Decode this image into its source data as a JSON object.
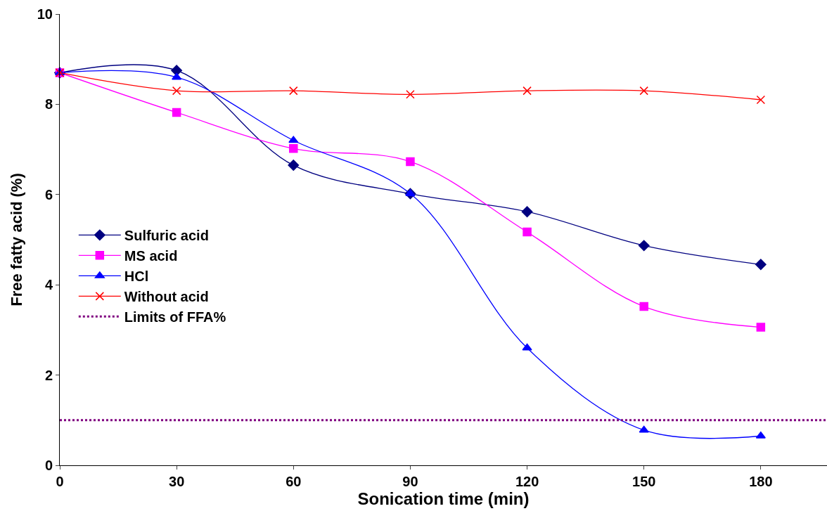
{
  "chart_data": {
    "type": "line",
    "xlabel": "Sonication time (min)",
    "ylabel": "Free fatty acid (%)",
    "x": [
      0,
      30,
      60,
      90,
      120,
      150,
      180
    ],
    "series": [
      {
        "name": "Sulfuric acid",
        "color": "#000080",
        "marker": "diamond",
        "values": [
          8.7,
          8.75,
          6.65,
          6.02,
          5.62,
          4.87,
          4.45
        ]
      },
      {
        "name": "MS acid",
        "color": "#ff00ff",
        "marker": "square",
        "values": [
          8.7,
          7.82,
          7.02,
          6.73,
          5.17,
          3.52,
          3.06
        ]
      },
      {
        "name": "HCl",
        "color": "#0000ff",
        "marker": "triangle",
        "values": [
          8.7,
          8.6,
          7.2,
          6.02,
          2.6,
          0.78,
          0.65
        ]
      },
      {
        "name": "Without acid",
        "color": "#ff0000",
        "marker": "cross",
        "values": [
          8.7,
          8.3,
          8.3,
          8.22,
          8.3,
          8.3,
          8.1
        ]
      }
    ],
    "ref_lines": [
      {
        "axis": "y",
        "value": 1,
        "label": "Limits of FFA%",
        "color": "#800080",
        "line_style": "dotted"
      }
    ],
    "xlim": [
      0,
      197
    ],
    "xticks": [
      0,
      30,
      60,
      90,
      120,
      150,
      180
    ],
    "ylim": [
      0,
      10
    ],
    "yticks": [
      0,
      2,
      4,
      6,
      8,
      10
    ],
    "legend": "left"
  }
}
